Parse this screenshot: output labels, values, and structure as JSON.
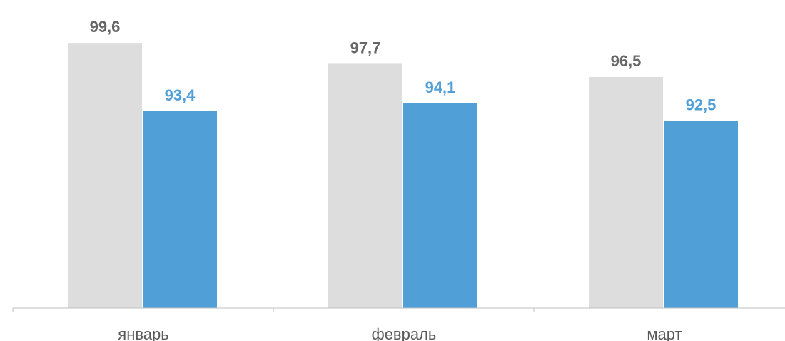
{
  "chart_data": {
    "type": "bar",
    "categories": [
      "январь",
      "февраль",
      "март"
    ],
    "series": [
      {
        "values": [
          99.6,
          97.7,
          96.5
        ],
        "labels": [
          "99,6",
          "97,7",
          "96,5"
        ],
        "color": "#dddddd",
        "label_color": "#666666"
      },
      {
        "values": [
          93.4,
          94.1,
          92.5
        ],
        "labels": [
          "93,4",
          "94,1",
          "92,5"
        ],
        "color": "#509fd7",
        "label_color": "#509fd7"
      }
    ],
    "ylim": [
      75.5,
      100
    ],
    "grid": false,
    "legend": "none"
  }
}
